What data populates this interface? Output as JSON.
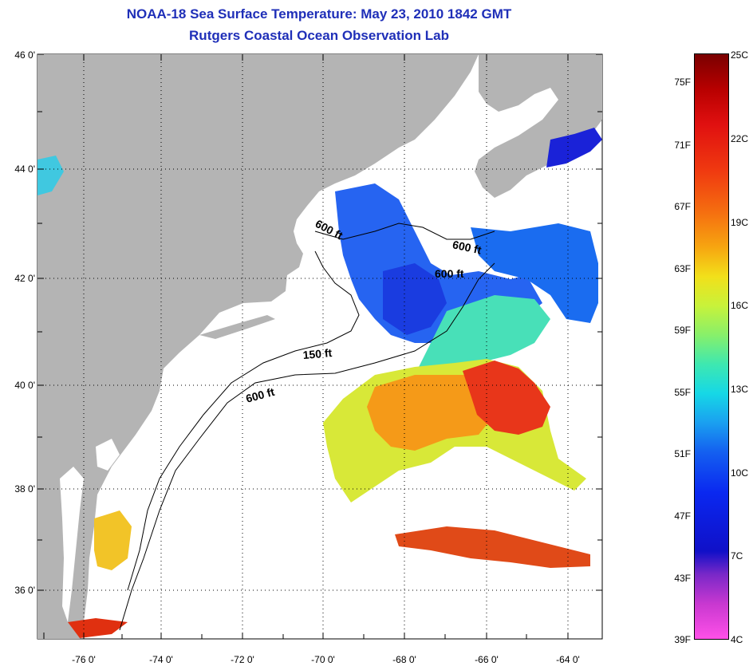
{
  "title": {
    "line1": "NOAA-18 Sea Surface Temperature:  May 23, 2010 1842 GMT",
    "line2": "Rutgers Coastal Ocean Observation Lab"
  },
  "axes": {
    "lat_labels": [
      "46 0'",
      "44 0'",
      "42 0'",
      "40 0'",
      "38 0'",
      "36 0'"
    ],
    "lon_labels": [
      "-76 0'",
      "-74 0'",
      "-72 0'",
      "-70 0'",
      "-68 0'",
      "-66 0'",
      "-64 0'"
    ]
  },
  "isobaths": {
    "label_600_ne": "600 ft",
    "label_600_gm": "600 ft",
    "label_600_gb": "600 ft",
    "label_150": "150 ft",
    "label_600_mab": "600 ft"
  },
  "colorbar": {
    "fahrenheit": [
      "75F",
      "71F",
      "67F",
      "63F",
      "59F",
      "55F",
      "51F",
      "47F",
      "43F",
      "39F"
    ],
    "celsius": [
      "25C",
      "22C",
      "19C",
      "16C",
      "13C",
      "10C",
      "7C",
      "4C"
    ]
  },
  "colors": {
    "land": "#b4b4b4",
    "title": "#1f2fb8",
    "warm": "#e8361a",
    "orange": "#f59a18",
    "yellow": "#e6e632",
    "cyan": "#30e0c8",
    "blue": "#1a5cf0",
    "deep_blue": "#1a22d8"
  }
}
